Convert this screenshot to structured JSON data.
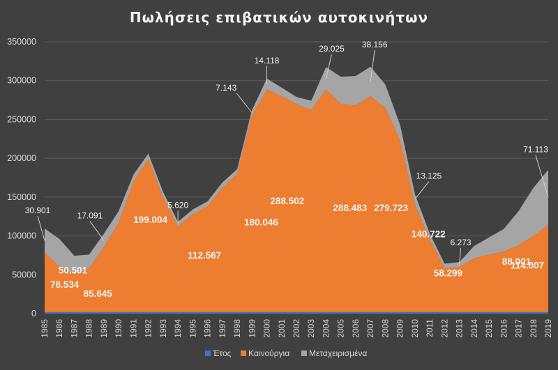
{
  "chart_data": {
    "type": "area",
    "stacked": true,
    "title": "Πωλήσεις επιβατικών αυτοκινήτων",
    "xlabel": "",
    "ylabel": "",
    "ylim": [
      0,
      350000
    ],
    "yticks": [
      "0",
      "50000",
      "100000",
      "150000",
      "200000",
      "250000",
      "300000",
      "350000"
    ],
    "grid": true,
    "legend_position": "bottom",
    "x": [
      "1985",
      "1986",
      "1987",
      "1988",
      "1989",
      "1990",
      "1991",
      "1992",
      "1993",
      "1994",
      "1995",
      "1996",
      "1997",
      "1998",
      "1999",
      "2000",
      "2001",
      "2002",
      "2003",
      "2004",
      "2005",
      "2006",
      "2007",
      "2008",
      "2009",
      "2010",
      "2011",
      "2012",
      "2013",
      "2014",
      "2015",
      "2016",
      "2017",
      "2018",
      "2019"
    ],
    "series": [
      {
        "name": "Έτος",
        "color": "#4472c4",
        "values": [
          1985,
          1986,
          1987,
          1988,
          1989,
          1990,
          1991,
          1992,
          1993,
          1994,
          1995,
          1996,
          1997,
          1998,
          1999,
          2000,
          2001,
          2002,
          2003,
          2004,
          2005,
          2006,
          2007,
          2008,
          2009,
          2010,
          2011,
          2012,
          2013,
          2014,
          2015,
          2016,
          2017,
          2018,
          2019
        ]
      },
      {
        "name": "Καινούργια",
        "color": "#ed7d31",
        "values": [
          78534,
          60000,
          50501,
          58000,
          85645,
          117000,
          170000,
          199004,
          150000,
          112567,
          128000,
          138000,
          162000,
          180046,
          255000,
          288502,
          280000,
          270000,
          262000,
          288483,
          270000,
          268000,
          279723,
          265000,
          223000,
          140722,
          96000,
          58299,
          60000,
          71000,
          76000,
          80000,
          88001,
          100000,
          114007
        ]
      },
      {
        "name": "Μεταχειρισμένα",
        "color": "#a5a5a5",
        "values": [
          30901,
          36000,
          24000,
          18000,
          17091,
          15000,
          9000,
          7000,
          6500,
          5620,
          6000,
          6500,
          6800,
          6000,
          7143,
          14118,
          11000,
          9000,
          12000,
          29025,
          35000,
          38000,
          38156,
          30000,
          20000,
          13125,
          7000,
          6000,
          6273,
          16000,
          22000,
          29000,
          44000,
          62000,
          71113
        ]
      }
    ],
    "data_labels": {
      "new": [
        {
          "year": "1985",
          "text": "78.534"
        },
        {
          "year": "1987",
          "text": "50.501"
        },
        {
          "year": "1989",
          "text": "85.645"
        },
        {
          "year": "1992",
          "text": "199.004"
        },
        {
          "year": "1994",
          "text": "112.567"
        },
        {
          "year": "1998",
          "text": "180.046"
        },
        {
          "year": "2000",
          "text": "288.502"
        },
        {
          "year": "2004",
          "text": "288.483"
        },
        {
          "year": "2007",
          "text": "279.723"
        },
        {
          "year": "2010",
          "text": "140.722"
        },
        {
          "year": "2012",
          "text": "58.299"
        },
        {
          "year": "2017",
          "text": "88.001"
        },
        {
          "year": "2019",
          "text": "114.007"
        }
      ],
      "used": [
        {
          "year": "1985",
          "text": "30.901"
        },
        {
          "year": "1989",
          "text": "17.091"
        },
        {
          "year": "1994",
          "text": "5.620"
        },
        {
          "year": "1999",
          "text": "7.143"
        },
        {
          "year": "2000",
          "text": "14.118"
        },
        {
          "year": "2004",
          "text": "29.025"
        },
        {
          "year": "2007",
          "text": "38.156"
        },
        {
          "year": "2010",
          "text": "13.125"
        },
        {
          "year": "2013",
          "text": "6.273"
        },
        {
          "year": "2019",
          "text": "71.113"
        }
      ]
    }
  }
}
